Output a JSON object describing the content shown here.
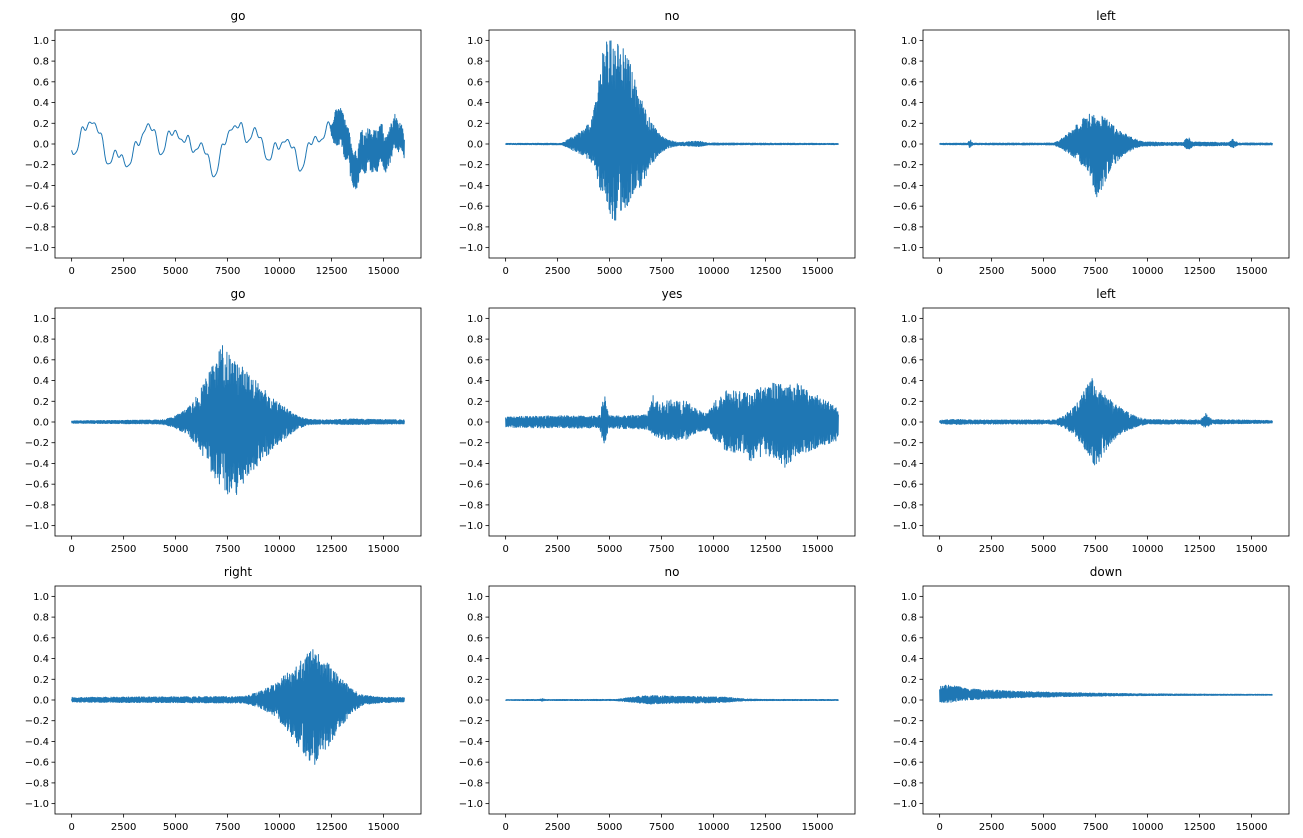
{
  "figure": {
    "background": "#ffffff"
  },
  "chart_data": [
    {
      "type": "line",
      "title": "go",
      "line_color": "#1f77b4",
      "xlim": [
        -800,
        16800
      ],
      "ylim": [
        -1.1,
        1.1
      ],
      "xticks": [
        0,
        2500,
        5000,
        7500,
        10000,
        12500,
        15000
      ],
      "yticks": [
        1.0,
        0.8,
        0.6,
        0.4,
        0.2,
        0.0,
        -0.2,
        -0.4,
        -0.6,
        -0.8,
        -1.0
      ],
      "waveform": {
        "seed": 1,
        "base": 0,
        "smooth": {
          "amp": 0.28,
          "cycles": [
            4,
            7,
            12,
            19,
            31,
            50
          ],
          "weights": [
            0.45,
            0.35,
            0.3,
            0.2,
            0.12,
            0.08
          ]
        },
        "noise_envelope": [
          [
            0,
            0,
            0
          ],
          [
            12400,
            0,
            0
          ],
          [
            12700,
            0.16,
            -0.2
          ],
          [
            13200,
            0.13,
            -0.26
          ],
          [
            13800,
            0.2,
            -0.18
          ],
          [
            14500,
            0.18,
            -0.22
          ],
          [
            15300,
            0.22,
            -0.16
          ],
          [
            16000,
            0.13,
            -0.1
          ]
        ]
      }
    },
    {
      "type": "line",
      "title": "no",
      "line_color": "#1f77b4",
      "xlim": [
        -800,
        16800
      ],
      "ylim": [
        -1.1,
        1.1
      ],
      "xticks": [
        0,
        2500,
        5000,
        7500,
        10000,
        12500,
        15000
      ],
      "yticks": [
        1.0,
        0.8,
        0.6,
        0.4,
        0.2,
        0.0,
        -0.2,
        -0.4,
        -0.6,
        -0.8,
        -1.0
      ],
      "waveform": {
        "seed": 2,
        "base": 0,
        "noise_envelope": [
          [
            0,
            0.006,
            -0.006
          ],
          [
            2700,
            0.008,
            -0.008
          ],
          [
            3100,
            0.06,
            -0.05
          ],
          [
            3600,
            0.12,
            -0.1
          ],
          [
            4100,
            0.22,
            -0.18
          ],
          [
            4400,
            0.5,
            -0.35
          ],
          [
            4700,
            0.97,
            -0.55
          ],
          [
            5000,
            1.0,
            -0.7
          ],
          [
            5400,
            0.98,
            -0.78
          ],
          [
            5800,
            0.9,
            -0.65
          ],
          [
            6200,
            0.65,
            -0.5
          ],
          [
            6600,
            0.4,
            -0.38
          ],
          [
            7000,
            0.22,
            -0.2
          ],
          [
            7400,
            0.1,
            -0.1
          ],
          [
            7800,
            0.04,
            -0.04
          ],
          [
            8300,
            0.015,
            -0.015
          ],
          [
            9300,
            0.03,
            -0.025
          ],
          [
            9700,
            0.01,
            -0.01
          ],
          [
            16000,
            0.006,
            -0.006
          ]
        ]
      }
    },
    {
      "type": "line",
      "title": "left",
      "line_color": "#1f77b4",
      "xlim": [
        -800,
        16800
      ],
      "ylim": [
        -1.1,
        1.1
      ],
      "xticks": [
        0,
        2500,
        5000,
        7500,
        10000,
        12500,
        15000
      ],
      "yticks": [
        1.0,
        0.8,
        0.6,
        0.4,
        0.2,
        0.0,
        -0.2,
        -0.4,
        -0.6,
        -0.8,
        -1.0
      ],
      "waveform": {
        "seed": 3,
        "base": 0,
        "noise_envelope": [
          [
            0,
            0.007,
            -0.007
          ],
          [
            1350,
            0.008,
            -0.008
          ],
          [
            1450,
            0.05,
            -0.04
          ],
          [
            1600,
            0.008,
            -0.008
          ],
          [
            5500,
            0.01,
            -0.01
          ],
          [
            5900,
            0.06,
            -0.05
          ],
          [
            6400,
            0.15,
            -0.12
          ],
          [
            6900,
            0.25,
            -0.22
          ],
          [
            7300,
            0.3,
            -0.35
          ],
          [
            7600,
            0.25,
            -0.55
          ],
          [
            7900,
            0.28,
            -0.4
          ],
          [
            8400,
            0.18,
            -0.2
          ],
          [
            8900,
            0.1,
            -0.1
          ],
          [
            9400,
            0.05,
            -0.04
          ],
          [
            9800,
            0.02,
            -0.02
          ],
          [
            11700,
            0.015,
            -0.015
          ],
          [
            11950,
            0.07,
            -0.06
          ],
          [
            12200,
            0.02,
            -0.02
          ],
          [
            13900,
            0.015,
            -0.015
          ],
          [
            14100,
            0.05,
            -0.04
          ],
          [
            14350,
            0.01,
            -0.01
          ],
          [
            16000,
            0.01,
            -0.01
          ]
        ]
      }
    },
    {
      "type": "line",
      "title": "go",
      "line_color": "#1f77b4",
      "xlim": [
        -800,
        16800
      ],
      "ylim": [
        -1.1,
        1.1
      ],
      "xticks": [
        0,
        2500,
        5000,
        7500,
        10000,
        12500,
        15000
      ],
      "yticks": [
        1.0,
        0.8,
        0.6,
        0.4,
        0.2,
        0.0,
        -0.2,
        -0.4,
        -0.6,
        -0.8,
        -1.0
      ],
      "waveform": {
        "seed": 4,
        "base": 0,
        "noise_envelope": [
          [
            0,
            0.012,
            -0.012
          ],
          [
            4300,
            0.02,
            -0.02
          ],
          [
            4900,
            0.05,
            -0.05
          ],
          [
            5500,
            0.12,
            -0.12
          ],
          [
            6000,
            0.25,
            -0.22
          ],
          [
            6500,
            0.45,
            -0.4
          ],
          [
            6900,
            0.6,
            -0.55
          ],
          [
            7200,
            0.75,
            -0.62
          ],
          [
            7500,
            0.68,
            -0.7
          ],
          [
            7900,
            0.6,
            -0.72
          ],
          [
            8400,
            0.5,
            -0.55
          ],
          [
            9000,
            0.38,
            -0.42
          ],
          [
            9600,
            0.25,
            -0.28
          ],
          [
            10200,
            0.15,
            -0.17
          ],
          [
            10800,
            0.07,
            -0.08
          ],
          [
            11300,
            0.03,
            -0.03
          ],
          [
            12000,
            0.02,
            -0.02
          ],
          [
            13500,
            0.03,
            -0.025
          ],
          [
            16000,
            0.02,
            -0.018
          ]
        ]
      }
    },
    {
      "type": "line",
      "title": "yes",
      "line_color": "#1f77b4",
      "xlim": [
        -800,
        16800
      ],
      "ylim": [
        -1.1,
        1.1
      ],
      "xticks": [
        0,
        2500,
        5000,
        7500,
        10000,
        12500,
        15000
      ],
      "yticks": [
        1.0,
        0.8,
        0.6,
        0.4,
        0.2,
        0.0,
        -0.2,
        -0.4,
        -0.6,
        -0.8,
        -1.0
      ],
      "waveform": {
        "seed": 5,
        "base": 0,
        "noise_envelope": [
          [
            0,
            0.05,
            -0.05
          ],
          [
            2000,
            0.06,
            -0.06
          ],
          [
            4500,
            0.06,
            -0.06
          ],
          [
            4750,
            0.27,
            -0.24
          ],
          [
            4950,
            0.06,
            -0.06
          ],
          [
            6800,
            0.07,
            -0.07
          ],
          [
            7100,
            0.28,
            -0.14
          ],
          [
            7400,
            0.18,
            -0.16
          ],
          [
            8000,
            0.22,
            -0.18
          ],
          [
            8700,
            0.2,
            -0.17
          ],
          [
            9200,
            0.12,
            -0.1
          ],
          [
            9700,
            0.08,
            -0.08
          ],
          [
            10100,
            0.22,
            -0.2
          ],
          [
            10600,
            0.3,
            -0.28
          ],
          [
            11200,
            0.32,
            -0.3
          ],
          [
            11800,
            0.28,
            -0.38
          ],
          [
            12400,
            0.35,
            -0.32
          ],
          [
            13000,
            0.42,
            -0.35
          ],
          [
            13400,
            0.35,
            -0.45
          ],
          [
            14000,
            0.38,
            -0.32
          ],
          [
            14700,
            0.3,
            -0.28
          ],
          [
            15400,
            0.22,
            -0.22
          ],
          [
            16000,
            0.12,
            -0.18
          ]
        ]
      }
    },
    {
      "type": "line",
      "title": "left",
      "line_color": "#1f77b4",
      "xlim": [
        -800,
        16800
      ],
      "ylim": [
        -1.1,
        1.1
      ],
      "xticks": [
        0,
        2500,
        5000,
        7500,
        10000,
        12500,
        15000
      ],
      "yticks": [
        1.0,
        0.8,
        0.6,
        0.4,
        0.2,
        0.0,
        -0.2,
        -0.4,
        -0.6,
        -0.8,
        -1.0
      ],
      "waveform": {
        "seed": 6,
        "base": 0,
        "noise_envelope": [
          [
            0,
            0.015,
            -0.015
          ],
          [
            800,
            0.03,
            -0.025
          ],
          [
            1500,
            0.02,
            -0.02
          ],
          [
            5600,
            0.02,
            -0.02
          ],
          [
            6100,
            0.08,
            -0.07
          ],
          [
            6600,
            0.18,
            -0.15
          ],
          [
            7000,
            0.32,
            -0.28
          ],
          [
            7300,
            0.45,
            -0.38
          ],
          [
            7500,
            0.35,
            -0.45
          ],
          [
            7900,
            0.28,
            -0.3
          ],
          [
            8400,
            0.18,
            -0.17
          ],
          [
            9000,
            0.1,
            -0.09
          ],
          [
            9500,
            0.05,
            -0.045
          ],
          [
            10000,
            0.025,
            -0.02
          ],
          [
            12550,
            0.02,
            -0.02
          ],
          [
            12800,
            0.09,
            -0.07
          ],
          [
            13100,
            0.025,
            -0.02
          ],
          [
            16000,
            0.015,
            -0.012
          ]
        ]
      }
    },
    {
      "type": "line",
      "title": "right",
      "line_color": "#1f77b4",
      "xlim": [
        -800,
        16800
      ],
      "ylim": [
        -1.1,
        1.1
      ],
      "xticks": [
        0,
        2500,
        5000,
        7500,
        10000,
        12500,
        15000
      ],
      "yticks": [
        1.0,
        0.8,
        0.6,
        0.4,
        0.2,
        0.0,
        -0.2,
        -0.4,
        -0.6,
        -0.8,
        -1.0
      ],
      "waveform": {
        "seed": 7,
        "base": 0,
        "noise_envelope": [
          [
            0,
            0.025,
            -0.02
          ],
          [
            3000,
            0.03,
            -0.025
          ],
          [
            8300,
            0.035,
            -0.03
          ],
          [
            9000,
            0.08,
            -0.07
          ],
          [
            9700,
            0.15,
            -0.15
          ],
          [
            10300,
            0.25,
            -0.28
          ],
          [
            10800,
            0.35,
            -0.42
          ],
          [
            11300,
            0.45,
            -0.55
          ],
          [
            11600,
            0.5,
            -0.65
          ],
          [
            12000,
            0.42,
            -0.55
          ],
          [
            12500,
            0.32,
            -0.42
          ],
          [
            13000,
            0.2,
            -0.25
          ],
          [
            13500,
            0.1,
            -0.12
          ],
          [
            14000,
            0.05,
            -0.05
          ],
          [
            14700,
            0.03,
            -0.03
          ],
          [
            16000,
            0.025,
            -0.02
          ]
        ]
      }
    },
    {
      "type": "line",
      "title": "no",
      "line_color": "#1f77b4",
      "xlim": [
        -800,
        16800
      ],
      "ylim": [
        -1.1,
        1.1
      ],
      "xticks": [
        0,
        2500,
        5000,
        7500,
        10000,
        12500,
        15000
      ],
      "yticks": [
        1.0,
        0.8,
        0.6,
        0.4,
        0.2,
        0.0,
        -0.2,
        -0.4,
        -0.6,
        -0.8,
        -1.0
      ],
      "waveform": {
        "seed": 8,
        "base": 0,
        "noise_envelope": [
          [
            0,
            0.004,
            -0.004
          ],
          [
            1600,
            0.006,
            -0.006
          ],
          [
            1750,
            0.015,
            -0.012
          ],
          [
            1900,
            0.005,
            -0.005
          ],
          [
            5300,
            0.006,
            -0.006
          ],
          [
            5800,
            0.02,
            -0.018
          ],
          [
            6400,
            0.035,
            -0.03
          ],
          [
            7000,
            0.045,
            -0.04
          ],
          [
            7600,
            0.04,
            -0.035
          ],
          [
            8300,
            0.035,
            -0.03
          ],
          [
            9000,
            0.035,
            -0.03
          ],
          [
            9800,
            0.03,
            -0.028
          ],
          [
            10500,
            0.03,
            -0.025
          ],
          [
            11000,
            0.02,
            -0.015
          ],
          [
            11600,
            0.01,
            -0.008
          ],
          [
            12300,
            0.006,
            -0.006
          ],
          [
            16000,
            0.005,
            -0.005
          ]
        ]
      }
    },
    {
      "type": "line",
      "title": "down",
      "line_color": "#1f77b4",
      "xlim": [
        -800,
        16800
      ],
      "ylim": [
        -1.1,
        1.1
      ],
      "xticks": [
        0,
        2500,
        5000,
        7500,
        10000,
        12500,
        15000
      ],
      "yticks": [
        1.0,
        0.8,
        0.6,
        0.4,
        0.2,
        0.0,
        -0.2,
        -0.4,
        -0.6,
        -0.8,
        -1.0
      ],
      "waveform": {
        "seed": 9,
        "base": 0.05,
        "noise_envelope": [
          [
            0,
            0.09,
            -0.07
          ],
          [
            400,
            0.1,
            -0.08
          ],
          [
            900,
            0.08,
            -0.06
          ],
          [
            1400,
            0.06,
            -0.05
          ],
          [
            2200,
            0.05,
            -0.04
          ],
          [
            3200,
            0.04,
            -0.032
          ],
          [
            4500,
            0.03,
            -0.025
          ],
          [
            6000,
            0.022,
            -0.018
          ],
          [
            8000,
            0.015,
            -0.012
          ],
          [
            10000,
            0.01,
            -0.008
          ],
          [
            12500,
            0.007,
            -0.006
          ],
          [
            16000,
            0.005,
            -0.004
          ]
        ]
      }
    }
  ]
}
